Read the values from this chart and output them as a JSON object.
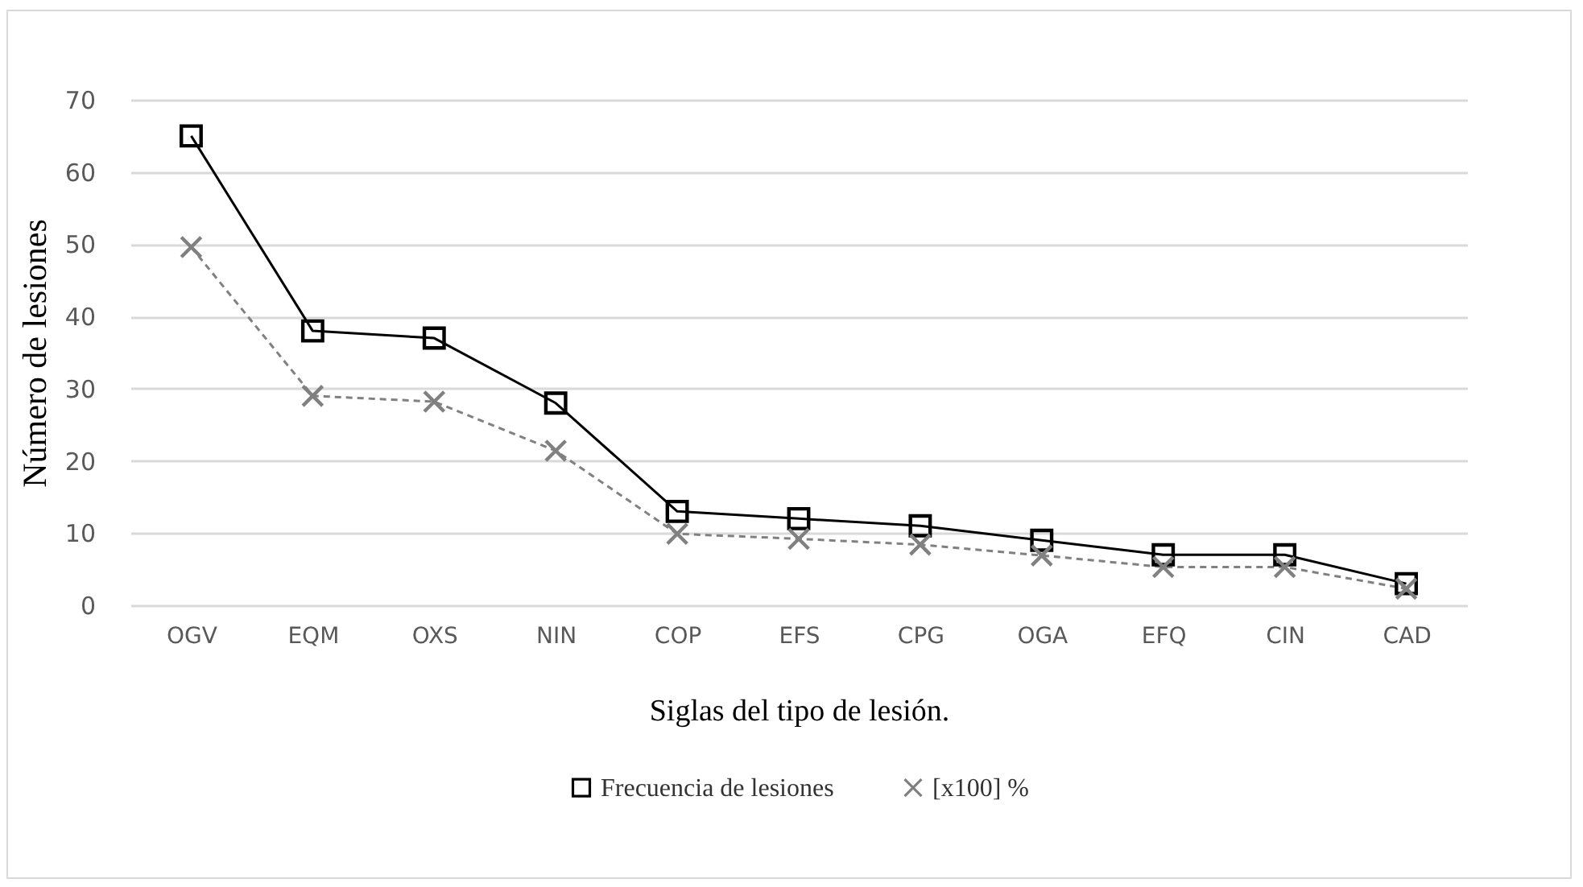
{
  "chart_data": {
    "type": "line",
    "xlabel": "Siglas del tipo de lesión.",
    "ylabel": "Número de lesiones",
    "categories": [
      "OGV",
      "EQM",
      "OXS",
      "NIN",
      "COP",
      "EFS",
      "CPG",
      "OGA",
      "EFQ",
      "CIN",
      "CAD"
    ],
    "series": [
      {
        "name": "Frecuencia de lesiones",
        "color": "#000000",
        "marker": "square",
        "line_style": "solid",
        "values": [
          65,
          38,
          37,
          28,
          13,
          12,
          11,
          9,
          7,
          7,
          3
        ]
      },
      {
        "name": "[x100] %",
        "color": "#808080",
        "marker": "cross",
        "line_style": "dashed",
        "values": [
          49.6,
          29.0,
          28.2,
          21.4,
          9.9,
          9.2,
          8.4,
          6.9,
          5.3,
          5.3,
          2.3
        ]
      }
    ],
    "ylim": [
      0,
      70
    ],
    "yticks": [
      0,
      10,
      20,
      30,
      40,
      50,
      60,
      70
    ],
    "grid": "y",
    "legend": "bottom"
  }
}
